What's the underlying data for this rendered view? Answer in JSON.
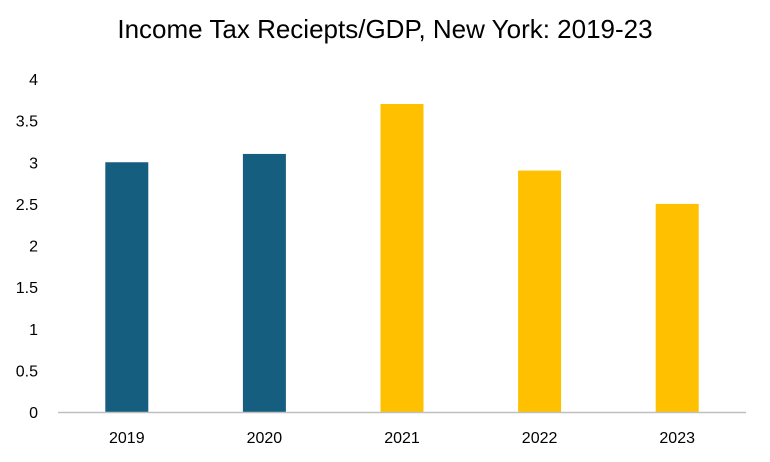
{
  "chart_data": {
    "type": "bar",
    "title": "Income Tax Reciepts/GDP, New York: 2019-23",
    "xlabel": "",
    "ylabel": "",
    "categories": [
      "2019",
      "2020",
      "2021",
      "2022",
      "2023"
    ],
    "values": [
      3.0,
      3.1,
      3.7,
      2.9,
      2.5
    ],
    "bar_colors": [
      "#165E80",
      "#165E80",
      "#FFC000",
      "#FFC000",
      "#FFC000"
    ],
    "ylim": [
      0,
      4
    ],
    "yticks": [
      0,
      0.5,
      1,
      1.5,
      2,
      2.5,
      3,
      3.5,
      4
    ],
    "ytick_labels": [
      "0",
      "0.5",
      "1",
      "1.5",
      "2",
      "2.5",
      "3",
      "3.5",
      "4"
    ],
    "grid": false,
    "legend": "none",
    "axis_color": "#BFBFBF"
  }
}
